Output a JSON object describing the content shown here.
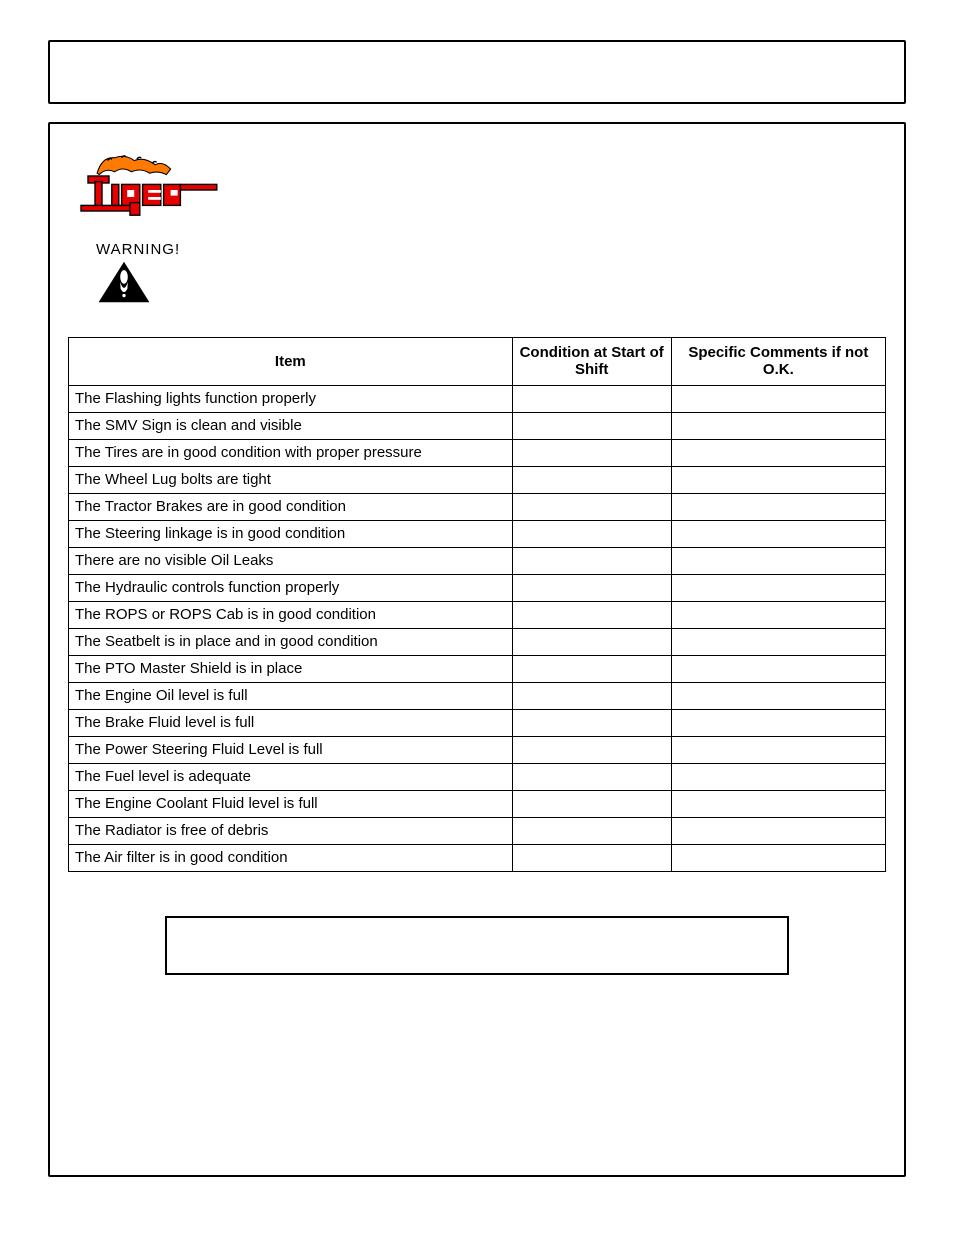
{
  "logo_text": "Tiger",
  "warning_label": "WARNING!",
  "table": {
    "headers": {
      "item": "Item",
      "condition": "Condition at Start of Shift",
      "comments": "Specific Comments if not O.K."
    },
    "rows": [
      "The Flashing lights function properly",
      "The SMV Sign is clean and visible",
      "The Tires are in good condition with proper pressure",
      "The Wheel Lug bolts are tight",
      "The Tractor Brakes are in good condition",
      "The Steering linkage is in good condition",
      "There are no visible Oil Leaks",
      "The Hydraulic controls function properly",
      "The ROPS or ROPS Cab is in good condition",
      "The Seatbelt is in place and in good condition",
      "The PTO Master Shield is in place",
      "The Engine Oil level is full",
      "The Brake Fluid level is full",
      "The Power Steering Fluid Level is full",
      "The Fuel level is adequate",
      "The Engine Coolant Fluid level is full",
      "The Radiator is free of debris",
      "The Air filter is in good condition"
    ]
  },
  "colors": {
    "logo_red": "#e60000",
    "logo_orange": "#ff7a00",
    "black": "#000000",
    "white": "#ffffff"
  }
}
